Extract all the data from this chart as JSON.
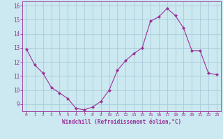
{
  "x": [
    0,
    1,
    2,
    3,
    4,
    5,
    6,
    7,
    8,
    9,
    10,
    11,
    12,
    13,
    14,
    15,
    16,
    17,
    18,
    19,
    20,
    21,
    22,
    23
  ],
  "y": [
    12.9,
    11.8,
    11.2,
    10.2,
    9.8,
    9.4,
    8.7,
    8.6,
    8.8,
    9.2,
    10.0,
    11.4,
    12.1,
    12.6,
    13.0,
    14.9,
    15.2,
    15.8,
    15.3,
    14.4,
    12.8,
    12.8,
    11.2,
    11.1
  ],
  "line_color": "#993399",
  "marker_color": "#993399",
  "bg_color": "#cce8f0",
  "grid_color": "#aaccda",
  "axis_color": "#993399",
  "xlabel": "Windchill (Refroidissement éolien,°C)",
  "ylim": [
    8.5,
    16.3
  ],
  "yticks": [
    9,
    10,
    11,
    12,
    13,
    14,
    15,
    16
  ],
  "xticks": [
    0,
    1,
    2,
    3,
    4,
    5,
    6,
    7,
    8,
    9,
    10,
    11,
    12,
    13,
    14,
    15,
    16,
    17,
    18,
    19,
    20,
    21,
    22,
    23
  ]
}
